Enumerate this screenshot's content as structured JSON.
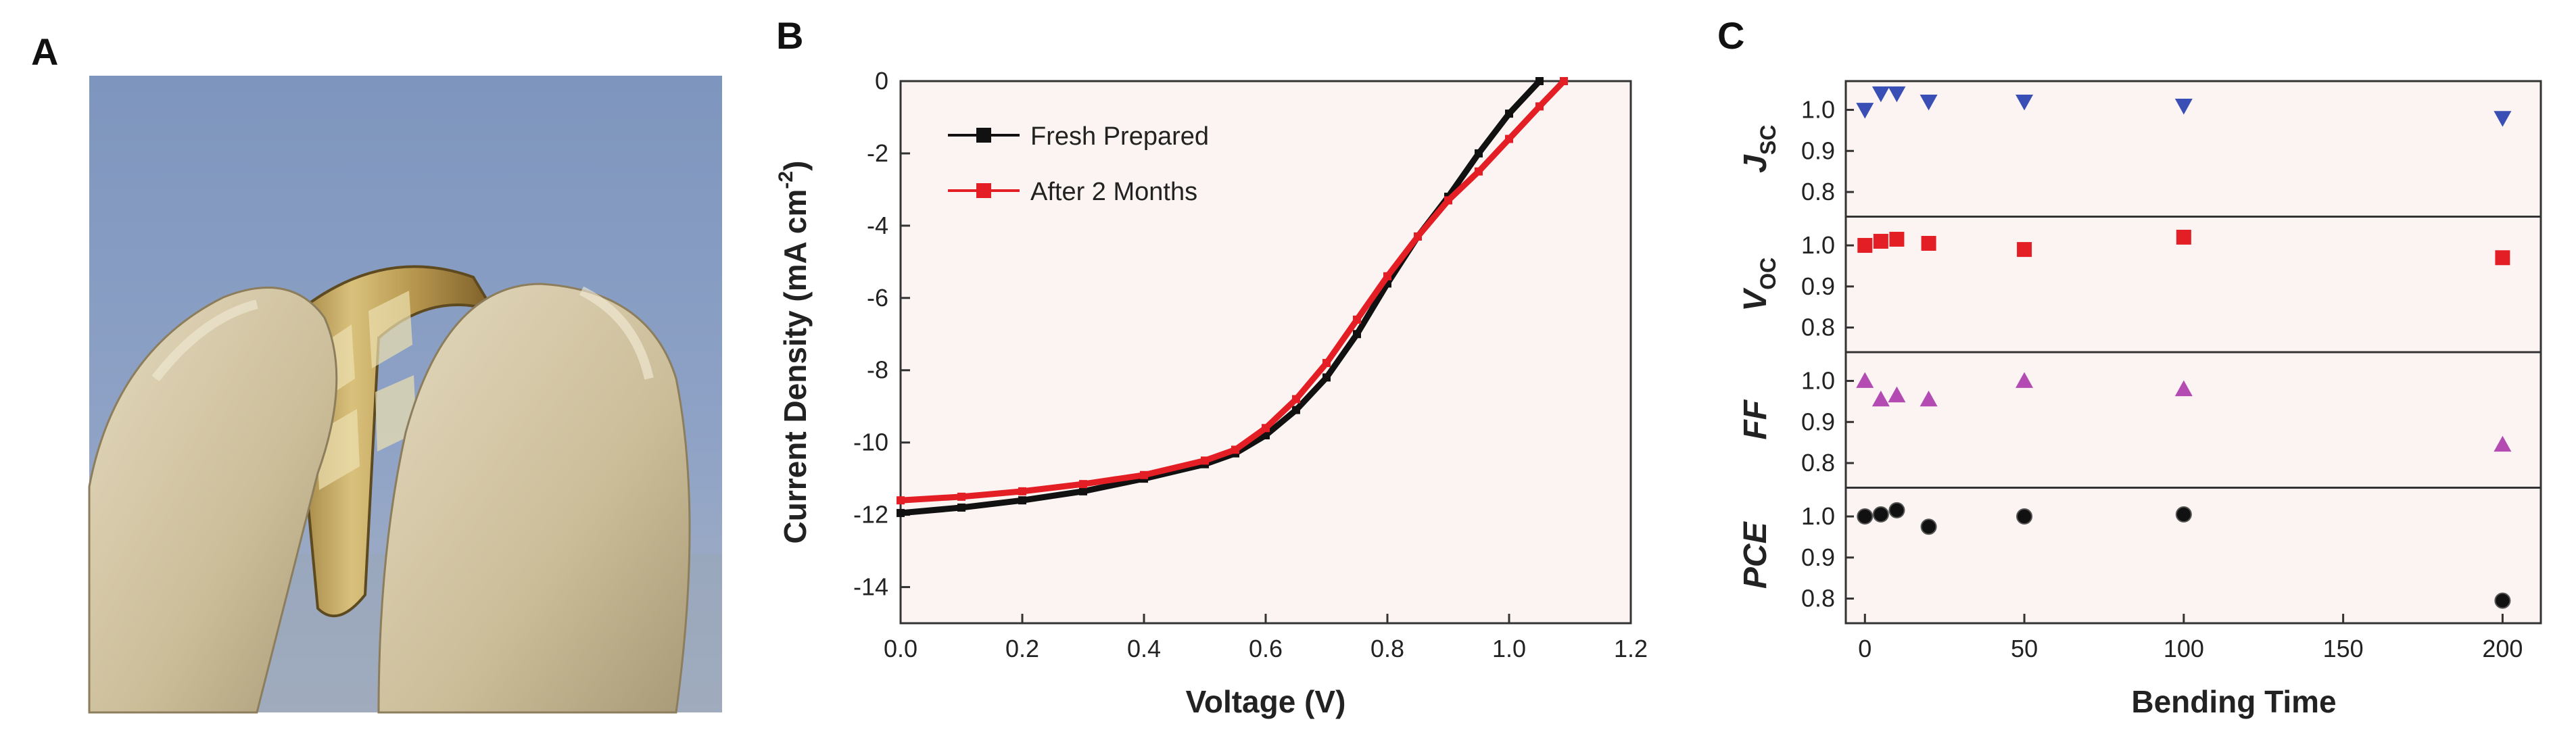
{
  "panels": {
    "a": {
      "label": "A"
    },
    "b": {
      "label": "B"
    },
    "c": {
      "label": "C"
    }
  },
  "colors": {
    "fresh": "#111111",
    "aged": "#e41e25",
    "jsc": "#3a4fb6",
    "voc": "#e41e25",
    "ff": "#b44bb3",
    "pce": "#111111",
    "plot_bg": "#fbf4f2"
  },
  "chart_data": [
    {
      "panel": "B",
      "type": "line",
      "title": "",
      "xlabel": "Voltage (V)",
      "ylabel_main": "Current Density (mA cm",
      "ylabel_sup": "-2",
      "ylabel_close": ")",
      "xlim": [
        0.0,
        1.2
      ],
      "ylim": [
        -15,
        0
      ],
      "xticks": [
        "0.0",
        "0.2",
        "0.4",
        "0.6",
        "0.8",
        "1.0",
        "1.2"
      ],
      "yticks": [
        "0",
        "-2",
        "-4",
        "-6",
        "-8",
        "-10",
        "-12",
        "-14"
      ],
      "legend_position": "upper-left",
      "series": [
        {
          "name": "Fresh Prepared",
          "color_key": "fresh",
          "x": [
            0.0,
            0.1,
            0.2,
            0.3,
            0.4,
            0.5,
            0.55,
            0.6,
            0.65,
            0.7,
            0.75,
            0.8,
            0.85,
            0.9,
            0.95,
            1.0,
            1.05
          ],
          "y": [
            -11.95,
            -11.8,
            -11.6,
            -11.35,
            -11.0,
            -10.6,
            -10.3,
            -9.8,
            -9.1,
            -8.2,
            -7.0,
            -5.6,
            -4.3,
            -3.2,
            -2.0,
            -0.9,
            0.0
          ]
        },
        {
          "name": "After 2 Months",
          "color_key": "aged",
          "x": [
            0.0,
            0.1,
            0.2,
            0.3,
            0.4,
            0.5,
            0.55,
            0.6,
            0.65,
            0.7,
            0.75,
            0.8,
            0.85,
            0.9,
            0.95,
            1.0,
            1.05,
            1.09
          ],
          "y": [
            -11.6,
            -11.5,
            -11.35,
            -11.15,
            -10.9,
            -10.5,
            -10.2,
            -9.6,
            -8.8,
            -7.8,
            -6.6,
            -5.4,
            -4.3,
            -3.3,
            -2.5,
            -1.6,
            -0.7,
            0.0
          ]
        }
      ]
    },
    {
      "panel": "C",
      "type": "scatter",
      "xlabel": "Bending Time",
      "xlim": [
        -6,
        212
      ],
      "xticks": [
        "0",
        "50",
        "100",
        "150",
        "200"
      ],
      "xtick_values": [
        0,
        50,
        100,
        150,
        200
      ],
      "ylim": [
        0.74,
        1.07
      ],
      "yticks": [
        "0.8",
        "0.9",
        "1.0"
      ],
      "ytick_values": [
        0.8,
        0.9,
        1.0
      ],
      "x": [
        0,
        5,
        10,
        20,
        50,
        100,
        200
      ],
      "rows": [
        {
          "label": "J",
          "sub": "SC",
          "marker": "triangle-down",
          "color_key": "jsc",
          "values": [
            1.0,
            1.04,
            1.04,
            1.02,
            1.02,
            1.01,
            0.98
          ]
        },
        {
          "label": "V",
          "sub": "OC",
          "marker": "square",
          "color_key": "voc",
          "values": [
            1.0,
            1.01,
            1.015,
            1.005,
            0.99,
            1.02,
            0.97
          ]
        },
        {
          "label": "FF",
          "sub": "",
          "marker": "triangle-up",
          "color_key": "ff",
          "values": [
            1.0,
            0.955,
            0.965,
            0.955,
            1.0,
            0.98,
            0.845
          ]
        },
        {
          "label": "PCE",
          "sub": "",
          "marker": "circle",
          "color_key": "pce",
          "values": [
            1.0,
            1.005,
            1.015,
            0.975,
            1.0,
            1.005,
            0.795
          ]
        }
      ]
    }
  ]
}
